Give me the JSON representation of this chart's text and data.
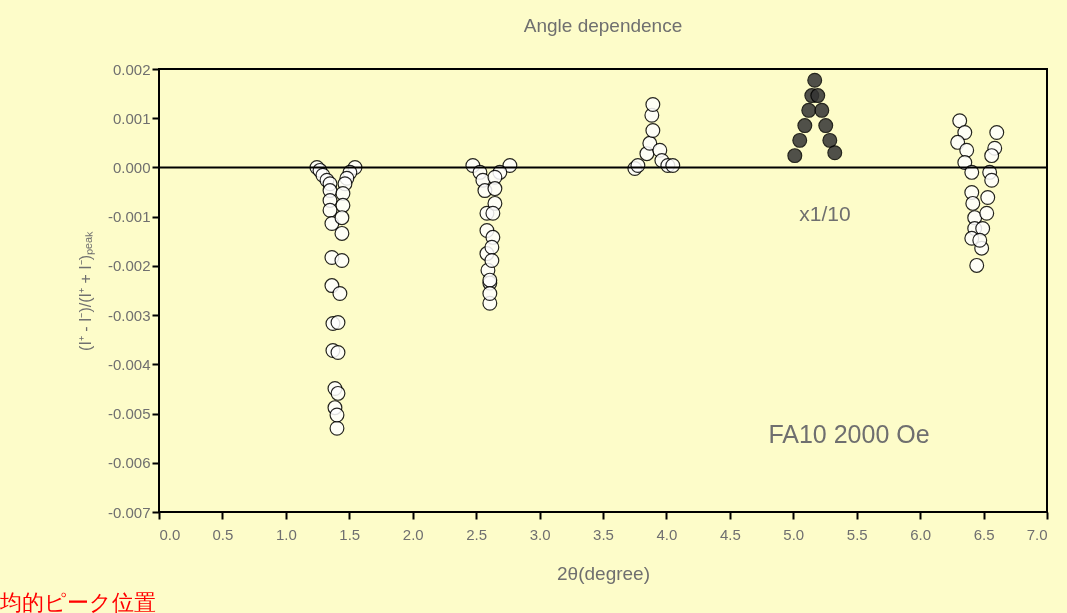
{
  "chart_data": {
    "type": "scatter",
    "title": "Angle dependence",
    "xlabel": "2θ(degree)",
    "ylabel": "(I⁺ - I⁻)/(I⁺ + I⁻)ₚₑₐₖ",
    "series": [
      {
        "color": "#ffffff",
        "x": [
          1.245,
          1.269,
          1.292,
          1.324,
          1.348,
          1.348,
          1.348,
          1.348,
          1.363,
          1.363,
          1.363,
          1.371,
          1.371,
          1.387,
          1.387,
          1.403,
          1.545,
          1.505,
          1.481,
          1.466,
          1.45,
          1.45,
          1.442,
          1.442,
          1.442,
          1.426,
          1.411,
          1.411,
          1.411,
          1.403,
          2.474,
          2.53,
          2.553,
          2.569,
          2.585,
          2.585,
          2.585,
          2.593,
          2.608,
          2.608,
          2.766,
          2.687,
          2.648,
          2.648,
          2.648,
          2.632,
          2.632,
          2.624,
          2.624,
          2.608,
          2.608,
          3.751,
          3.775,
          3.846,
          3.869,
          3.893,
          3.885,
          3.893,
          3.948,
          3.964,
          4.011,
          4.05,
          6.312,
          6.352,
          6.296,
          6.367,
          6.352,
          6.407,
          6.407,
          6.415,
          6.43,
          6.43,
          6.407,
          6.485,
          6.446,
          6.604,
          6.588,
          6.564,
          6.548,
          6.564,
          6.533,
          6.525,
          6.493,
          6.47
        ],
        "values": [
          0.0,
          -6e-05,
          -0.00016,
          -0.00026,
          -0.00033,
          -0.00047,
          -0.00067,
          -0.00087,
          -0.00114,
          -0.00183,
          -0.0024,
          -0.00317,
          -0.00372,
          -0.00449,
          -0.00488,
          -0.0053,
          0.0,
          -0.0001,
          -0.00022,
          -0.00033,
          -0.00053,
          -0.00077,
          -0.00102,
          -0.00134,
          -0.00189,
          -0.00256,
          -0.00315,
          -0.00376,
          -0.00459,
          -0.00503,
          4e-05,
          -0.0001,
          -0.00026,
          -0.00047,
          -0.00093,
          -0.00128,
          -0.00175,
          -0.00209,
          -0.00235,
          -0.00276,
          4e-05,
          -0.0001,
          -0.0002,
          -0.00043,
          -0.00073,
          -0.00093,
          -0.00142,
          -0.00162,
          -0.00189,
          -0.00229,
          -0.00256,
          -2e-05,
          4e-05,
          0.00028,
          0.00049,
          0.00075,
          0.00106,
          0.00128,
          0.00035,
          0.00014,
          4e-05,
          4e-05,
          0.00095,
          0.00071,
          0.00051,
          0.00035,
          0.0001,
          -0.0001,
          -0.00051,
          -0.00073,
          -0.00102,
          -0.00124,
          -0.00144,
          -0.00164,
          -0.00199,
          0.00071,
          0.00039,
          0.00024,
          -0.0001,
          -0.00026,
          -0.00061,
          -0.00093,
          -0.00124,
          -0.00148
        ]
      },
      {
        "color": "#333333",
        "x": [
          5.012,
          5.051,
          5.091,
          5.122,
          5.146,
          5.169,
          5.193,
          5.225,
          5.256,
          5.288,
          5.327
        ],
        "values": [
          0.00024,
          0.00055,
          0.00085,
          0.00116,
          0.00146,
          0.00177,
          0.00146,
          0.00116,
          0.00085,
          0.00055,
          0.0003
        ]
      }
    ],
    "xlim": [
      0.0,
      7.0
    ],
    "xticks": [
      {
        "value": 0,
        "label": "0.0"
      },
      {
        "value": 0.5,
        "label": "0.5"
      },
      {
        "value": 1,
        "label": "1.0"
      },
      {
        "value": 1.5,
        "label": "1.5"
      },
      {
        "value": 2,
        "label": "2.0"
      },
      {
        "value": 2.5,
        "label": "2.5"
      },
      {
        "value": 3,
        "label": "3.0"
      },
      {
        "value": 3.5,
        "label": "3.5"
      },
      {
        "value": 4,
        "label": "4.0"
      },
      {
        "value": 4.5,
        "label": "4.5"
      },
      {
        "value": 5,
        "label": "5.0"
      },
      {
        "value": 5.5,
        "label": "5.5"
      },
      {
        "value": 6,
        "label": "6.0"
      },
      {
        "value": 6.5,
        "label": "6.5"
      },
      {
        "value": 7,
        "label": "7.0"
      }
    ],
    "ylim": [
      -0.007,
      0.002
    ],
    "yticks": [
      {
        "value": -0.007,
        "label": "-0.007"
      },
      {
        "value": -0.006,
        "label": "-0.006"
      },
      {
        "value": -0.005,
        "label": "-0.005"
      },
      {
        "value": -0.004,
        "label": "-0.004"
      },
      {
        "value": -0.003,
        "label": "-0.003"
      },
      {
        "value": -0.002,
        "label": "-0.002"
      },
      {
        "value": -0.001,
        "label": "-0.001"
      },
      {
        "value": 0,
        "label": "0.000"
      },
      {
        "value": 0.001,
        "label": "0.001"
      },
      {
        "value": 0.002,
        "label": "0.002"
      }
    ],
    "ref_lines": [
      {
        "axis": "y",
        "value": 0,
        "color": "#000000"
      }
    ],
    "annotations": [
      "x1/10",
      "FA10 2000 Oe",
      "均的ピーク位置"
    ],
    "marker": "circle",
    "grid": false,
    "legend": false
  }
}
